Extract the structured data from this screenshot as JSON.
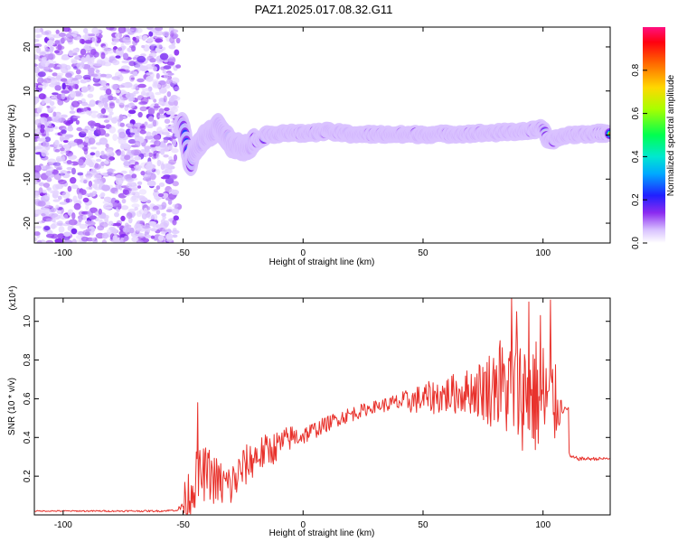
{
  "figure": {
    "title": "PAZ1.2025.017.08.32.G11"
  },
  "colors": {
    "snr_line": "#e8322c",
    "scatter_points": "#8b2bf0",
    "colormap": [
      "#ffffff",
      "#c9a8ff",
      "#7a2cf0",
      "#1a1aff",
      "#00cfff",
      "#00ff80",
      "#9aff00",
      "#ffd000",
      "#ff6a00",
      "#ff0000",
      "#ff0080"
    ]
  },
  "chart_data": [
    {
      "type": "heatmap",
      "name": "spectrogram",
      "xlabel": "Height of straight line (km)",
      "ylabel": "Frequency (Hz)",
      "xlim": [
        -112,
        128
      ],
      "ylim": [
        -24.5,
        24.5
      ],
      "x_ticks": [
        -100,
        -50,
        0,
        50,
        100
      ],
      "y_ticks": [
        -20,
        -10,
        0,
        10,
        20
      ],
      "noise_region_x": [
        -112,
        -52
      ],
      "ridge": {
        "description_points": [
          {
            "x": -50,
            "freq": 2,
            "amp": 0.35
          },
          {
            "x": -47,
            "freq": -7,
            "amp": 0.3
          },
          {
            "x": -45,
            "freq": -3,
            "amp": 0.3
          },
          {
            "x": -40,
            "freq": 0,
            "amp": 0.3
          },
          {
            "x": -35,
            "freq": 2,
            "amp": 0.3
          },
          {
            "x": -30,
            "freq": -2,
            "amp": 0.35
          },
          {
            "x": -25,
            "freq": -3,
            "amp": 0.4
          },
          {
            "x": -20,
            "freq": -1.5,
            "amp": 0.45
          },
          {
            "x": -15,
            "freq": 0,
            "amp": 0.55
          },
          {
            "x": -8,
            "freq": 0.5,
            "amp": 0.7
          },
          {
            "x": 0,
            "freq": 0.3,
            "amp": 0.75
          },
          {
            "x": 10,
            "freq": 0.8,
            "amp": 0.8
          },
          {
            "x": 20,
            "freq": 0.2,
            "amp": 0.85
          },
          {
            "x": 40,
            "freq": 0.1,
            "amp": 0.9
          },
          {
            "x": 60,
            "freq": 0.2,
            "amp": 0.9
          },
          {
            "x": 80,
            "freq": 0.5,
            "amp": 0.9
          },
          {
            "x": 95,
            "freq": 1.0,
            "amp": 0.85
          },
          {
            "x": 100,
            "freq": 1.5,
            "amp": 0.8
          },
          {
            "x": 102,
            "freq": -1.5,
            "amp": 0.75
          },
          {
            "x": 110,
            "freq": 0.0,
            "amp": 0.95
          },
          {
            "x": 128,
            "freq": 0.5,
            "amp": 0.95
          }
        ]
      },
      "colorbar": {
        "label": "Normalized spectral amplitude",
        "range": [
          0,
          1
        ],
        "ticks": [
          "0.0",
          "0.2",
          "0.4",
          "0.6",
          "0.8"
        ]
      }
    },
    {
      "type": "line",
      "name": "snr",
      "xlabel": "Height of straight line (km)",
      "ylabel": "SNR (10 * v/v)",
      "ylabel_multiplier": "(x10⁴)",
      "xlim": [
        -112,
        128
      ],
      "ylim": [
        0,
        1.12
      ],
      "x_ticks": [
        -100,
        -50,
        0,
        50,
        100
      ],
      "y_ticks": [
        "0.2",
        "0.4",
        "0.6",
        "0.8",
        "1.0"
      ],
      "y_tick_values": [
        0.2,
        0.4,
        0.6,
        0.8,
        1.0
      ],
      "baseline_points": {
        "x": [
          -112,
          -60,
          -52,
          -48,
          -45,
          -40,
          -35,
          -30,
          -25,
          -20,
          -15,
          -10,
          -5,
          0,
          5,
          10,
          15,
          20,
          25,
          30,
          35,
          40,
          45,
          50,
          55,
          60,
          65,
          70,
          75,
          80,
          85,
          90,
          95,
          100,
          105,
          108,
          110,
          111,
          115,
          120,
          128
        ],
        "y": [
          0.02,
          0.02,
          0.025,
          0.09,
          0.18,
          0.22,
          0.16,
          0.15,
          0.24,
          0.3,
          0.33,
          0.36,
          0.4,
          0.41,
          0.44,
          0.47,
          0.5,
          0.52,
          0.54,
          0.56,
          0.57,
          0.58,
          0.59,
          0.6,
          0.61,
          0.62,
          0.63,
          0.64,
          0.65,
          0.66,
          0.65,
          0.64,
          0.62,
          0.6,
          0.57,
          0.55,
          0.56,
          0.3,
          0.29,
          0.29,
          0.29
        ]
      },
      "amplitude_of_fluctuation": {
        "x": [
          -112,
          -52,
          -48,
          -40,
          -30,
          -20,
          -10,
          0,
          10,
          20,
          30,
          40,
          50,
          60,
          70,
          80,
          90,
          100,
          104,
          108,
          111,
          128
        ],
        "y": [
          0.003,
          0.005,
          0.15,
          0.14,
          0.12,
          0.1,
          0.08,
          0.05,
          0.04,
          0.04,
          0.03,
          0.05,
          0.08,
          0.1,
          0.12,
          0.22,
          0.3,
          0.32,
          0.28,
          0.04,
          0.01,
          0.008
        ]
      },
      "spikes": [
        {
          "x": -44,
          "y": 0.58
        },
        {
          "x": 80,
          "y": 0.75
        },
        {
          "x": 82,
          "y": 0.9
        },
        {
          "x": 87,
          "y": 1.12
        },
        {
          "x": 89,
          "y": 1.05
        },
        {
          "x": 94,
          "y": 1.1
        },
        {
          "x": 99,
          "y": 1.03
        },
        {
          "x": 103,
          "y": 1.11
        }
      ]
    }
  ]
}
